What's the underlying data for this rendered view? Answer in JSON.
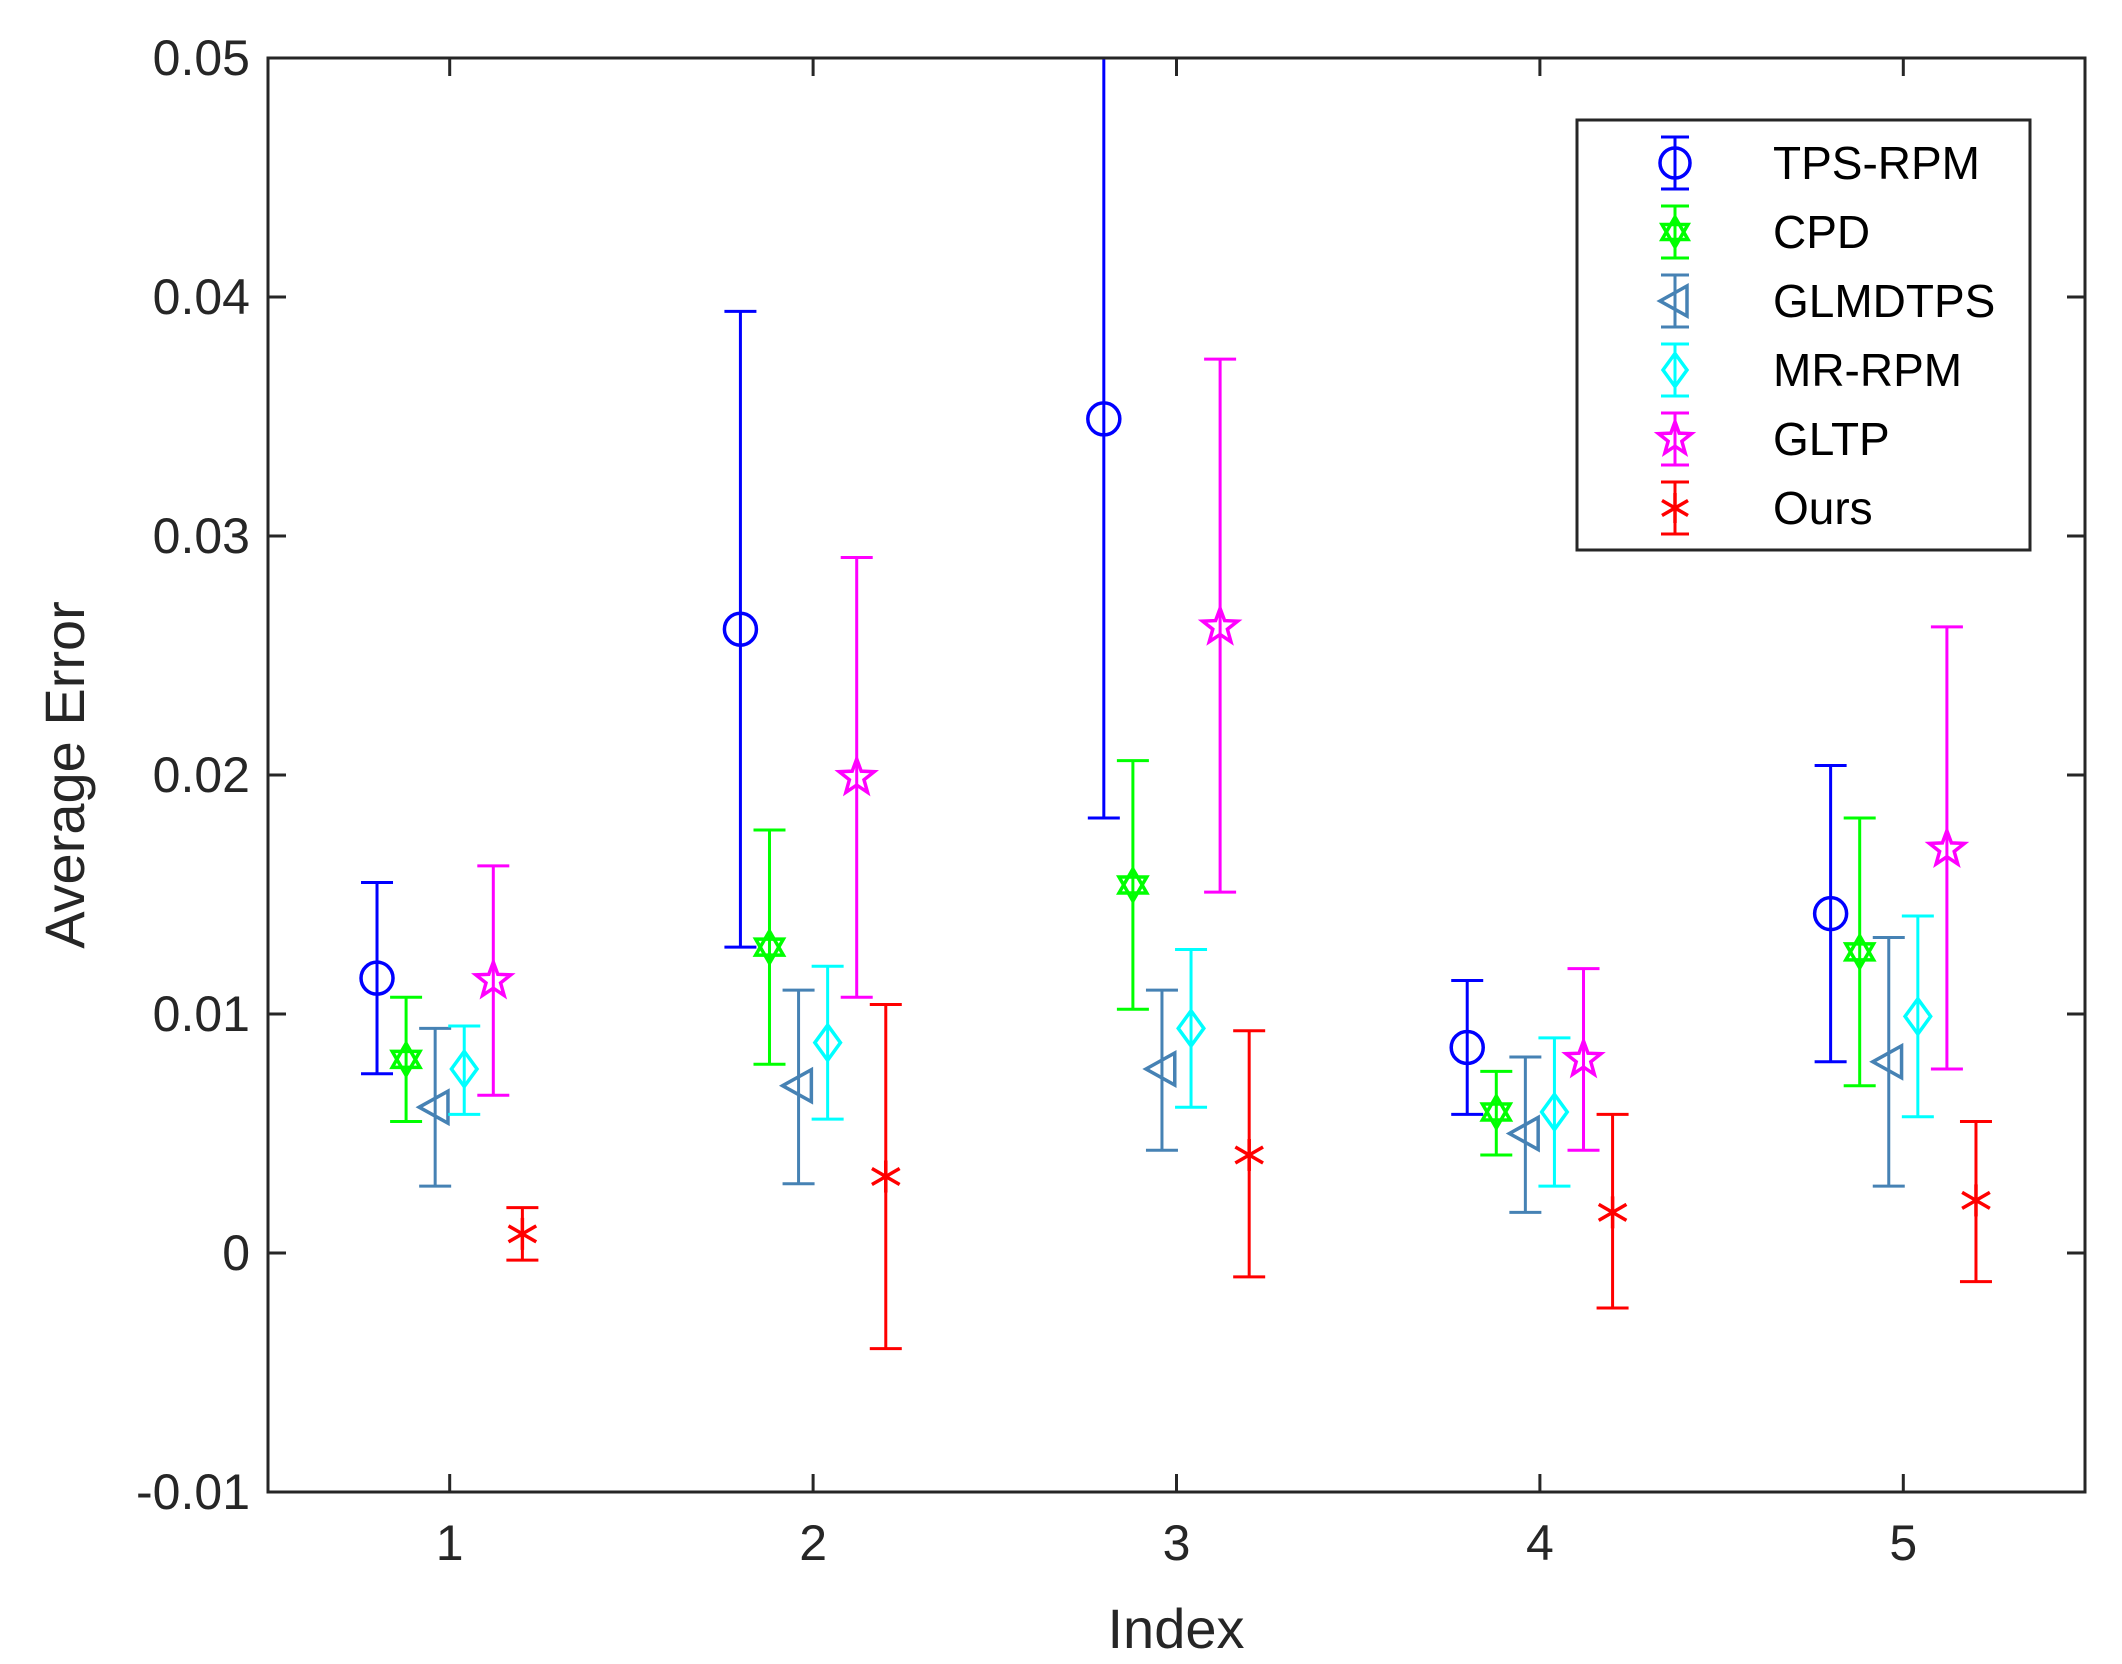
{
  "chart_data": {
    "type": "errorbar",
    "title": "",
    "xlabel": "Index",
    "ylabel": "Average Error",
    "xlim": [
      0.5,
      5.5
    ],
    "ylim": [
      -0.01,
      0.05
    ],
    "x_ticks": [
      1,
      2,
      3,
      4,
      5
    ],
    "x_tick_labels": [
      "1",
      "2",
      "3",
      "4",
      "5"
    ],
    "y_ticks": [
      -0.01,
      0,
      0.01,
      0.02,
      0.03,
      0.04,
      0.05
    ],
    "y_tick_labels": [
      "-0.01",
      "0",
      "0.01",
      "0.02",
      "0.03",
      "0.04",
      "0.05"
    ],
    "grid": false,
    "legend_position": "top-right",
    "series": [
      {
        "name": "TPS-RPM",
        "color": "#0000ff",
        "marker": "circle",
        "offset": -0.2,
        "values": [
          0.0115,
          0.0261,
          0.0349,
          0.0086,
          0.0142
        ],
        "lower": [
          0.0075,
          0.0128,
          0.0182,
          0.0058,
          0.008
        ],
        "upper": [
          0.0155,
          0.0394,
          0.0516,
          0.0114,
          0.0204
        ]
      },
      {
        "name": "CPD",
        "color": "#00ff00",
        "marker": "hexagram",
        "offset": -0.12,
        "values": [
          0.0081,
          0.0128,
          0.0154,
          0.0059,
          0.0126
        ],
        "lower": [
          0.0055,
          0.0079,
          0.0102,
          0.0041,
          0.007
        ],
        "upper": [
          0.0107,
          0.0177,
          0.0206,
          0.0076,
          0.0182
        ]
      },
      {
        "name": "GLMDTPS",
        "color": "#4682b4",
        "marker": "triangle-left",
        "offset": -0.04,
        "values": [
          0.0061,
          0.007,
          0.0077,
          0.005,
          0.008
        ],
        "lower": [
          0.0028,
          0.0029,
          0.0043,
          0.0017,
          0.0028
        ],
        "upper": [
          0.0094,
          0.011,
          0.011,
          0.0082,
          0.0132
        ]
      },
      {
        "name": "MR-RPM",
        "color": "#00ffff",
        "marker": "diamond",
        "offset": 0.04,
        "values": [
          0.0077,
          0.0088,
          0.0094,
          0.0059,
          0.0099
        ],
        "lower": [
          0.0058,
          0.0056,
          0.0061,
          0.0028,
          0.0057
        ],
        "upper": [
          0.0095,
          0.012,
          0.0127,
          0.009,
          0.0141
        ]
      },
      {
        "name": "GLTP",
        "color": "#ff00ff",
        "marker": "pentagram",
        "offset": 0.12,
        "values": [
          0.0114,
          0.0199,
          0.0262,
          0.0081,
          0.0169
        ],
        "lower": [
          0.0066,
          0.0107,
          0.0151,
          0.0043,
          0.0077
        ],
        "upper": [
          0.0162,
          0.0291,
          0.0374,
          0.0119,
          0.0262
        ]
      },
      {
        "name": "Ours",
        "color": "#ff0000",
        "marker": "asterisk",
        "offset": 0.2,
        "values": [
          0.0008,
          0.0032,
          0.0041,
          0.0017,
          0.0022
        ],
        "lower": [
          -0.0003,
          -0.004,
          -0.001,
          -0.0023,
          -0.0012
        ],
        "upper": [
          0.0019,
          0.0104,
          0.0093,
          0.0058,
          0.0055
        ]
      }
    ]
  }
}
